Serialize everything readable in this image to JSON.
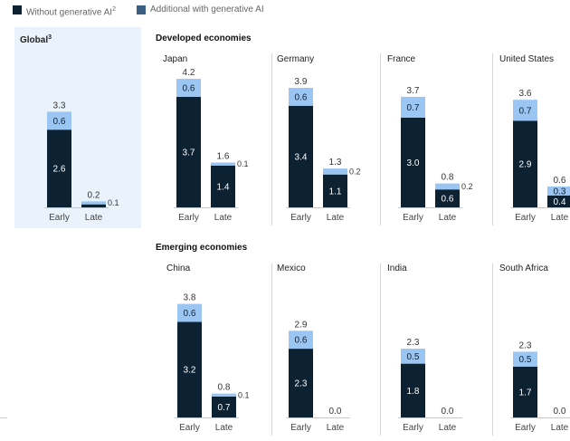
{
  "legend": {
    "without_label": "Without generative AI",
    "without_sup": "2",
    "with_label": "Additional with generative AI",
    "without_color": "#0c2233",
    "with_color": "#3b5e83"
  },
  "sections": {
    "developed_title": "Developed economies",
    "emerging_title": "Emerging economies"
  },
  "colors": {
    "base": "#0c2233",
    "addition": "#9bc5f3",
    "text_on_bar": "#ffffff",
    "panel_bg": "#eaf3fc"
  },
  "chart_data": {
    "type": "bar",
    "stacked": true,
    "categories": [
      "Early",
      "Late"
    ],
    "y_max": 4.2,
    "panels": [
      {
        "title": "Global",
        "title_sup": "3",
        "group": "global",
        "base": [
          2.6,
          0.1
        ],
        "base_labels": [
          "2.6",
          ""
        ],
        "addition": [
          0.6,
          0.1
        ],
        "addition_labels": [
          "0.6",
          ""
        ],
        "totals": [
          "3.3",
          "0.2"
        ],
        "side_labels": [
          "",
          "0.1"
        ]
      },
      {
        "title": "Japan",
        "group": "developed",
        "base": [
          3.7,
          1.4
        ],
        "base_labels": [
          "3.7",
          "1.4"
        ],
        "addition": [
          0.6,
          0.1
        ],
        "addition_labels": [
          "0.6",
          ""
        ],
        "totals": [
          "4.2",
          "1.6"
        ],
        "side_labels": [
          "",
          "0.1"
        ]
      },
      {
        "title": "Germany",
        "group": "developed",
        "base": [
          3.4,
          1.1
        ],
        "base_labels": [
          "3.4",
          "1.1"
        ],
        "addition": [
          0.6,
          0.2
        ],
        "addition_labels": [
          "0.6",
          ""
        ],
        "totals": [
          "3.9",
          "1.3"
        ],
        "side_labels": [
          "",
          "0.2"
        ]
      },
      {
        "title": "France",
        "group": "developed",
        "base": [
          3.0,
          0.6
        ],
        "base_labels": [
          "3.0",
          "0.6"
        ],
        "addition": [
          0.7,
          0.2
        ],
        "addition_labels": [
          "0.7",
          ""
        ],
        "totals": [
          "3.7",
          "0.8"
        ],
        "side_labels": [
          "",
          "0.2"
        ]
      },
      {
        "title": "United States",
        "group": "developed",
        "base": [
          2.9,
          0.4
        ],
        "base_labels": [
          "2.9",
          "0.4"
        ],
        "addition": [
          0.7,
          0.3
        ],
        "addition_labels": [
          "0.7",
          "0.3"
        ],
        "totals": [
          "3.6",
          "0.6"
        ],
        "side_labels": [
          "",
          ""
        ]
      },
      {
        "title": "China",
        "group": "emerging",
        "base": [
          3.2,
          0.7
        ],
        "base_labels": [
          "3.2",
          "0.7"
        ],
        "addition": [
          0.6,
          0.1
        ],
        "addition_labels": [
          "0.6",
          ""
        ],
        "totals": [
          "3.8",
          "0.8"
        ],
        "side_labels": [
          "",
          "0.1"
        ]
      },
      {
        "title": "Mexico",
        "group": "emerging",
        "base": [
          2.3,
          0.0
        ],
        "base_labels": [
          "2.3",
          ""
        ],
        "addition": [
          0.6,
          0.0
        ],
        "addition_labels": [
          "0.6",
          ""
        ],
        "totals": [
          "2.9",
          "0.0"
        ],
        "side_labels": [
          "",
          ""
        ]
      },
      {
        "title": "India",
        "group": "emerging",
        "base": [
          1.8,
          0.0
        ],
        "base_labels": [
          "1.8",
          ""
        ],
        "addition": [
          0.5,
          0.0
        ],
        "addition_labels": [
          "0.5",
          ""
        ],
        "totals": [
          "2.3",
          "0.0"
        ],
        "side_labels": [
          "",
          ""
        ]
      },
      {
        "title": "South Africa",
        "group": "emerging",
        "base": [
          1.7,
          0.0
        ],
        "base_labels": [
          "1.7",
          ""
        ],
        "addition": [
          0.5,
          0.0
        ],
        "addition_labels": [
          "0.5",
          ""
        ],
        "totals": [
          "2.3",
          "0.0"
        ],
        "side_labels": [
          "",
          ""
        ]
      }
    ]
  }
}
